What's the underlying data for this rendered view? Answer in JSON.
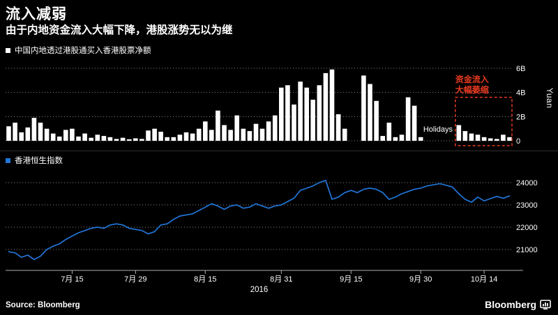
{
  "header": {
    "title": "流入减弱",
    "subtitle": "由于内地资金流入大幅下降，港股涨势无以为继"
  },
  "footer": {
    "source_label": "Source: Bloomberg",
    "brand": "Bloomberg"
  },
  "chart_data": [
    {
      "type": "bar",
      "title": "中国内地透过港股通买入香港股票净额",
      "unit_label": "Yuan",
      "bar_color": "#ffffff",
      "values_unit": "billion yuan",
      "ylim": [
        0,
        6.5
      ],
      "grid": "dotted",
      "legend_position": "top-left",
      "y_axis_side": "right",
      "y_ticks": [
        {
          "value": 0,
          "label": "0"
        },
        {
          "value": 2,
          "label": "2B"
        },
        {
          "value": 4,
          "label": "4B"
        },
        {
          "value": 6,
          "label": "6B"
        }
      ],
      "values": [
        1.2,
        1.5,
        0.7,
        1.1,
        1.9,
        1.5,
        1.0,
        0.6,
        0.35,
        0.9,
        1.0,
        0.35,
        0.6,
        0.25,
        0.5,
        0.4,
        0.3,
        0.15,
        0.25,
        0.12,
        0.2,
        0.15,
        0.85,
        1.0,
        0.75,
        0.3,
        0.3,
        0.5,
        0.7,
        0.6,
        1.0,
        1.6,
        0.9,
        2.5,
        1.3,
        0.9,
        2.1,
        1.0,
        0.8,
        1.4,
        1.0,
        1.6,
        2.1,
        4.4,
        4.6,
        3.0,
        4.9,
        4.4,
        3.4,
        4.6,
        5.6,
        5.9,
        2.2,
        1.0,
        null,
        null,
        5.4,
        4.7,
        3.3,
        0.4,
        1.5,
        0.3,
        0.5,
        3.6,
        2.9,
        0.3,
        null,
        null,
        null,
        null,
        null,
        1.3,
        0.8,
        0.6,
        0.5,
        0.3,
        0.2,
        0.15,
        0.5,
        0.3
      ],
      "annotations": {
        "holidays_label": "Holidays",
        "highlight_box": {
          "text_line1": "资金流入",
          "text_line2": "大幅萎缩",
          "color": "#e63a20",
          "start_index": 71,
          "end_index": 79,
          "top_value": 3.6
        }
      }
    },
    {
      "type": "line",
      "title": "香港恒生指数",
      "line_color": "#2176d9",
      "ylim": [
        20450,
        24350
      ],
      "grid": "dotted",
      "legend_position": "top-left",
      "y_axis_side": "right",
      "y_ticks": [
        {
          "value": 21000,
          "label": "21000"
        },
        {
          "value": 22000,
          "label": "22000"
        },
        {
          "value": 23000,
          "label": "23000"
        },
        {
          "value": 24000,
          "label": "24000"
        }
      ],
      "values": [
        20900,
        20850,
        20650,
        20750,
        20550,
        20700,
        21000,
        21150,
        21250,
        21450,
        21600,
        21750,
        21850,
        21950,
        22000,
        21950,
        22100,
        22150,
        22100,
        21950,
        21900,
        21850,
        21700,
        21800,
        22100,
        22150,
        22350,
        22500,
        22550,
        22600,
        22750,
        22900,
        23050,
        22950,
        22800,
        22950,
        23000,
        22850,
        22900,
        23050,
        22950,
        22850,
        22950,
        23000,
        23150,
        23300,
        23650,
        23750,
        23850,
        24000,
        24100,
        23250,
        23350,
        23550,
        23650,
        23550,
        23700,
        23750,
        23700,
        23550,
        23250,
        23350,
        23500,
        23600,
        23700,
        23750,
        23850,
        23900,
        23950,
        23880,
        23800,
        23500,
        23250,
        23120,
        23350,
        23180,
        23280,
        23380,
        23300,
        23400
      ],
      "x_axis": {
        "year_label": "2016",
        "ticks": [
          {
            "label": "7月 15",
            "index": 10
          },
          {
            "label": "7月 29",
            "index": 20
          },
          {
            "label": "8月 15",
            "index": 31
          },
          {
            "label": "8月 31",
            "index": 43
          },
          {
            "label": "9月 15",
            "index": 54
          },
          {
            "label": "9月 30",
            "index": 65
          },
          {
            "label": "10月 14",
            "index": 75
          }
        ]
      }
    }
  ]
}
